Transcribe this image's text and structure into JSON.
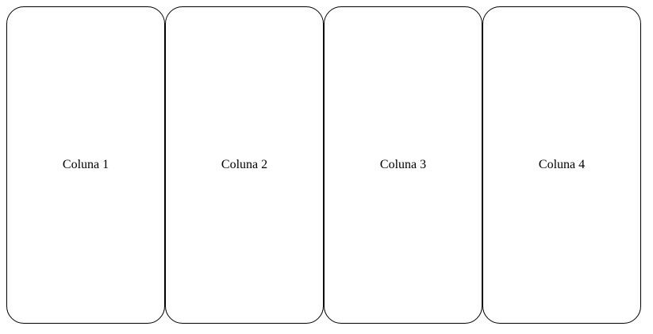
{
  "columns": [
    {
      "label": "Coluna 1"
    },
    {
      "label": "Coluna 2"
    },
    {
      "label": "Coluna 3"
    },
    {
      "label": "Coluna 4"
    }
  ],
  "colors": {
    "background": "#ffffff",
    "border": "#000000",
    "text": "#000000"
  }
}
